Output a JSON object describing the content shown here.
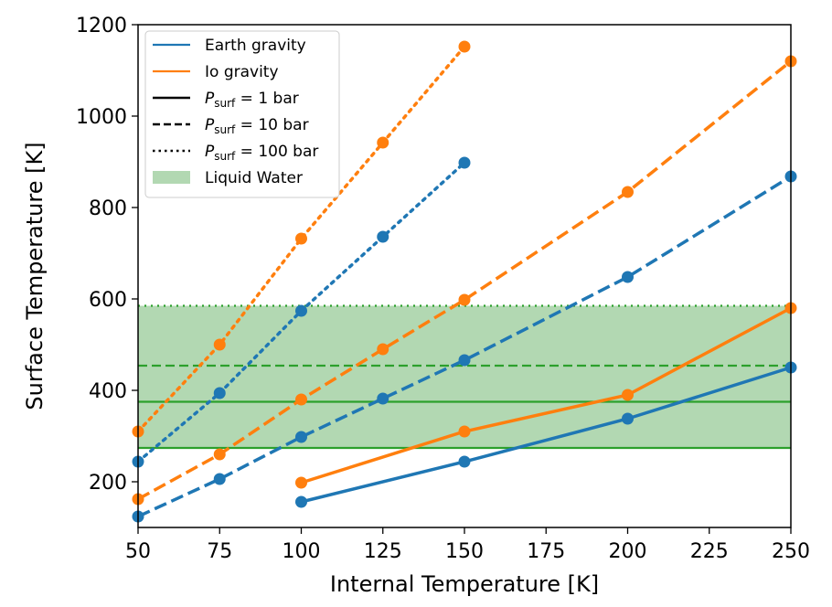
{
  "chart_data": {
    "type": "line",
    "xlabel": "Internal Temperature [K]",
    "ylabel": "Surface Temperature [K]",
    "xlim": [
      50,
      250
    ],
    "ylim": [
      100,
      1200
    ],
    "xticks": [
      50,
      75,
      100,
      125,
      150,
      175,
      200,
      225,
      250
    ],
    "yticks": [
      200,
      400,
      600,
      800,
      1000,
      1200
    ],
    "grid": false,
    "legend_placement": "top-left",
    "colors": {
      "earth": "#1f77b4",
      "io": "#ff7f0e",
      "water": "#2ca02c",
      "water_fill": "#b2d8b2"
    },
    "legend": [
      {
        "label": "Earth gravity",
        "kind": "color",
        "key": "earth"
      },
      {
        "label": "Io gravity",
        "kind": "color",
        "key": "io"
      },
      {
        "label": "P_surf = 1 bar",
        "sym": "P",
        "sub": "surf",
        "rest": " = 1 bar",
        "kind": "style",
        "dash": "solid"
      },
      {
        "label": "P_surf = 10 bar",
        "sym": "P",
        "sub": "surf",
        "rest": " = 10 bar",
        "kind": "style",
        "dash": "dashed"
      },
      {
        "label": "P_surf = 100 bar",
        "sym": "P",
        "sub": "surf",
        "rest": " = 100 bar",
        "kind": "style",
        "dash": "dotted"
      },
      {
        "label": "Liquid Water",
        "kind": "patch"
      }
    ],
    "series": [
      {
        "gravity": "earth",
        "pressure_bar": 1,
        "dash": "solid",
        "x": [
          100,
          150,
          200,
          250
        ],
        "y": [
          156,
          244,
          338,
          450
        ]
      },
      {
        "gravity": "io",
        "pressure_bar": 1,
        "dash": "solid",
        "x": [
          100,
          150,
          200,
          250
        ],
        "y": [
          198,
          310,
          390,
          580
        ]
      },
      {
        "gravity": "earth",
        "pressure_bar": 10,
        "dash": "dashed",
        "x": [
          50,
          75,
          100,
          125,
          150,
          200,
          250
        ],
        "y": [
          124,
          206,
          298,
          382,
          466,
          648,
          868
        ]
      },
      {
        "gravity": "io",
        "pressure_bar": 10,
        "dash": "dashed",
        "x": [
          50,
          75,
          100,
          125,
          150,
          200,
          250
        ],
        "y": [
          162,
          260,
          380,
          490,
          598,
          834,
          1120
        ]
      },
      {
        "gravity": "earth",
        "pressure_bar": 100,
        "dash": "dotted",
        "x": [
          50,
          75,
          100,
          125,
          150
        ],
        "y": [
          244,
          394,
          574,
          736,
          898
        ]
      },
      {
        "gravity": "io",
        "pressure_bar": 100,
        "dash": "dotted",
        "x": [
          50,
          75,
          100,
          125,
          150
        ],
        "y": [
          310,
          500,
          732,
          942,
          1152
        ]
      }
    ],
    "liquid_water": {
      "range": [
        274,
        585
      ],
      "lines": [
        {
          "y": 274,
          "dash": "solid"
        },
        {
          "y": 375,
          "dash": "solid"
        },
        {
          "y": 454,
          "dash": "dashed"
        },
        {
          "y": 585,
          "dash": "dotted"
        }
      ]
    }
  }
}
